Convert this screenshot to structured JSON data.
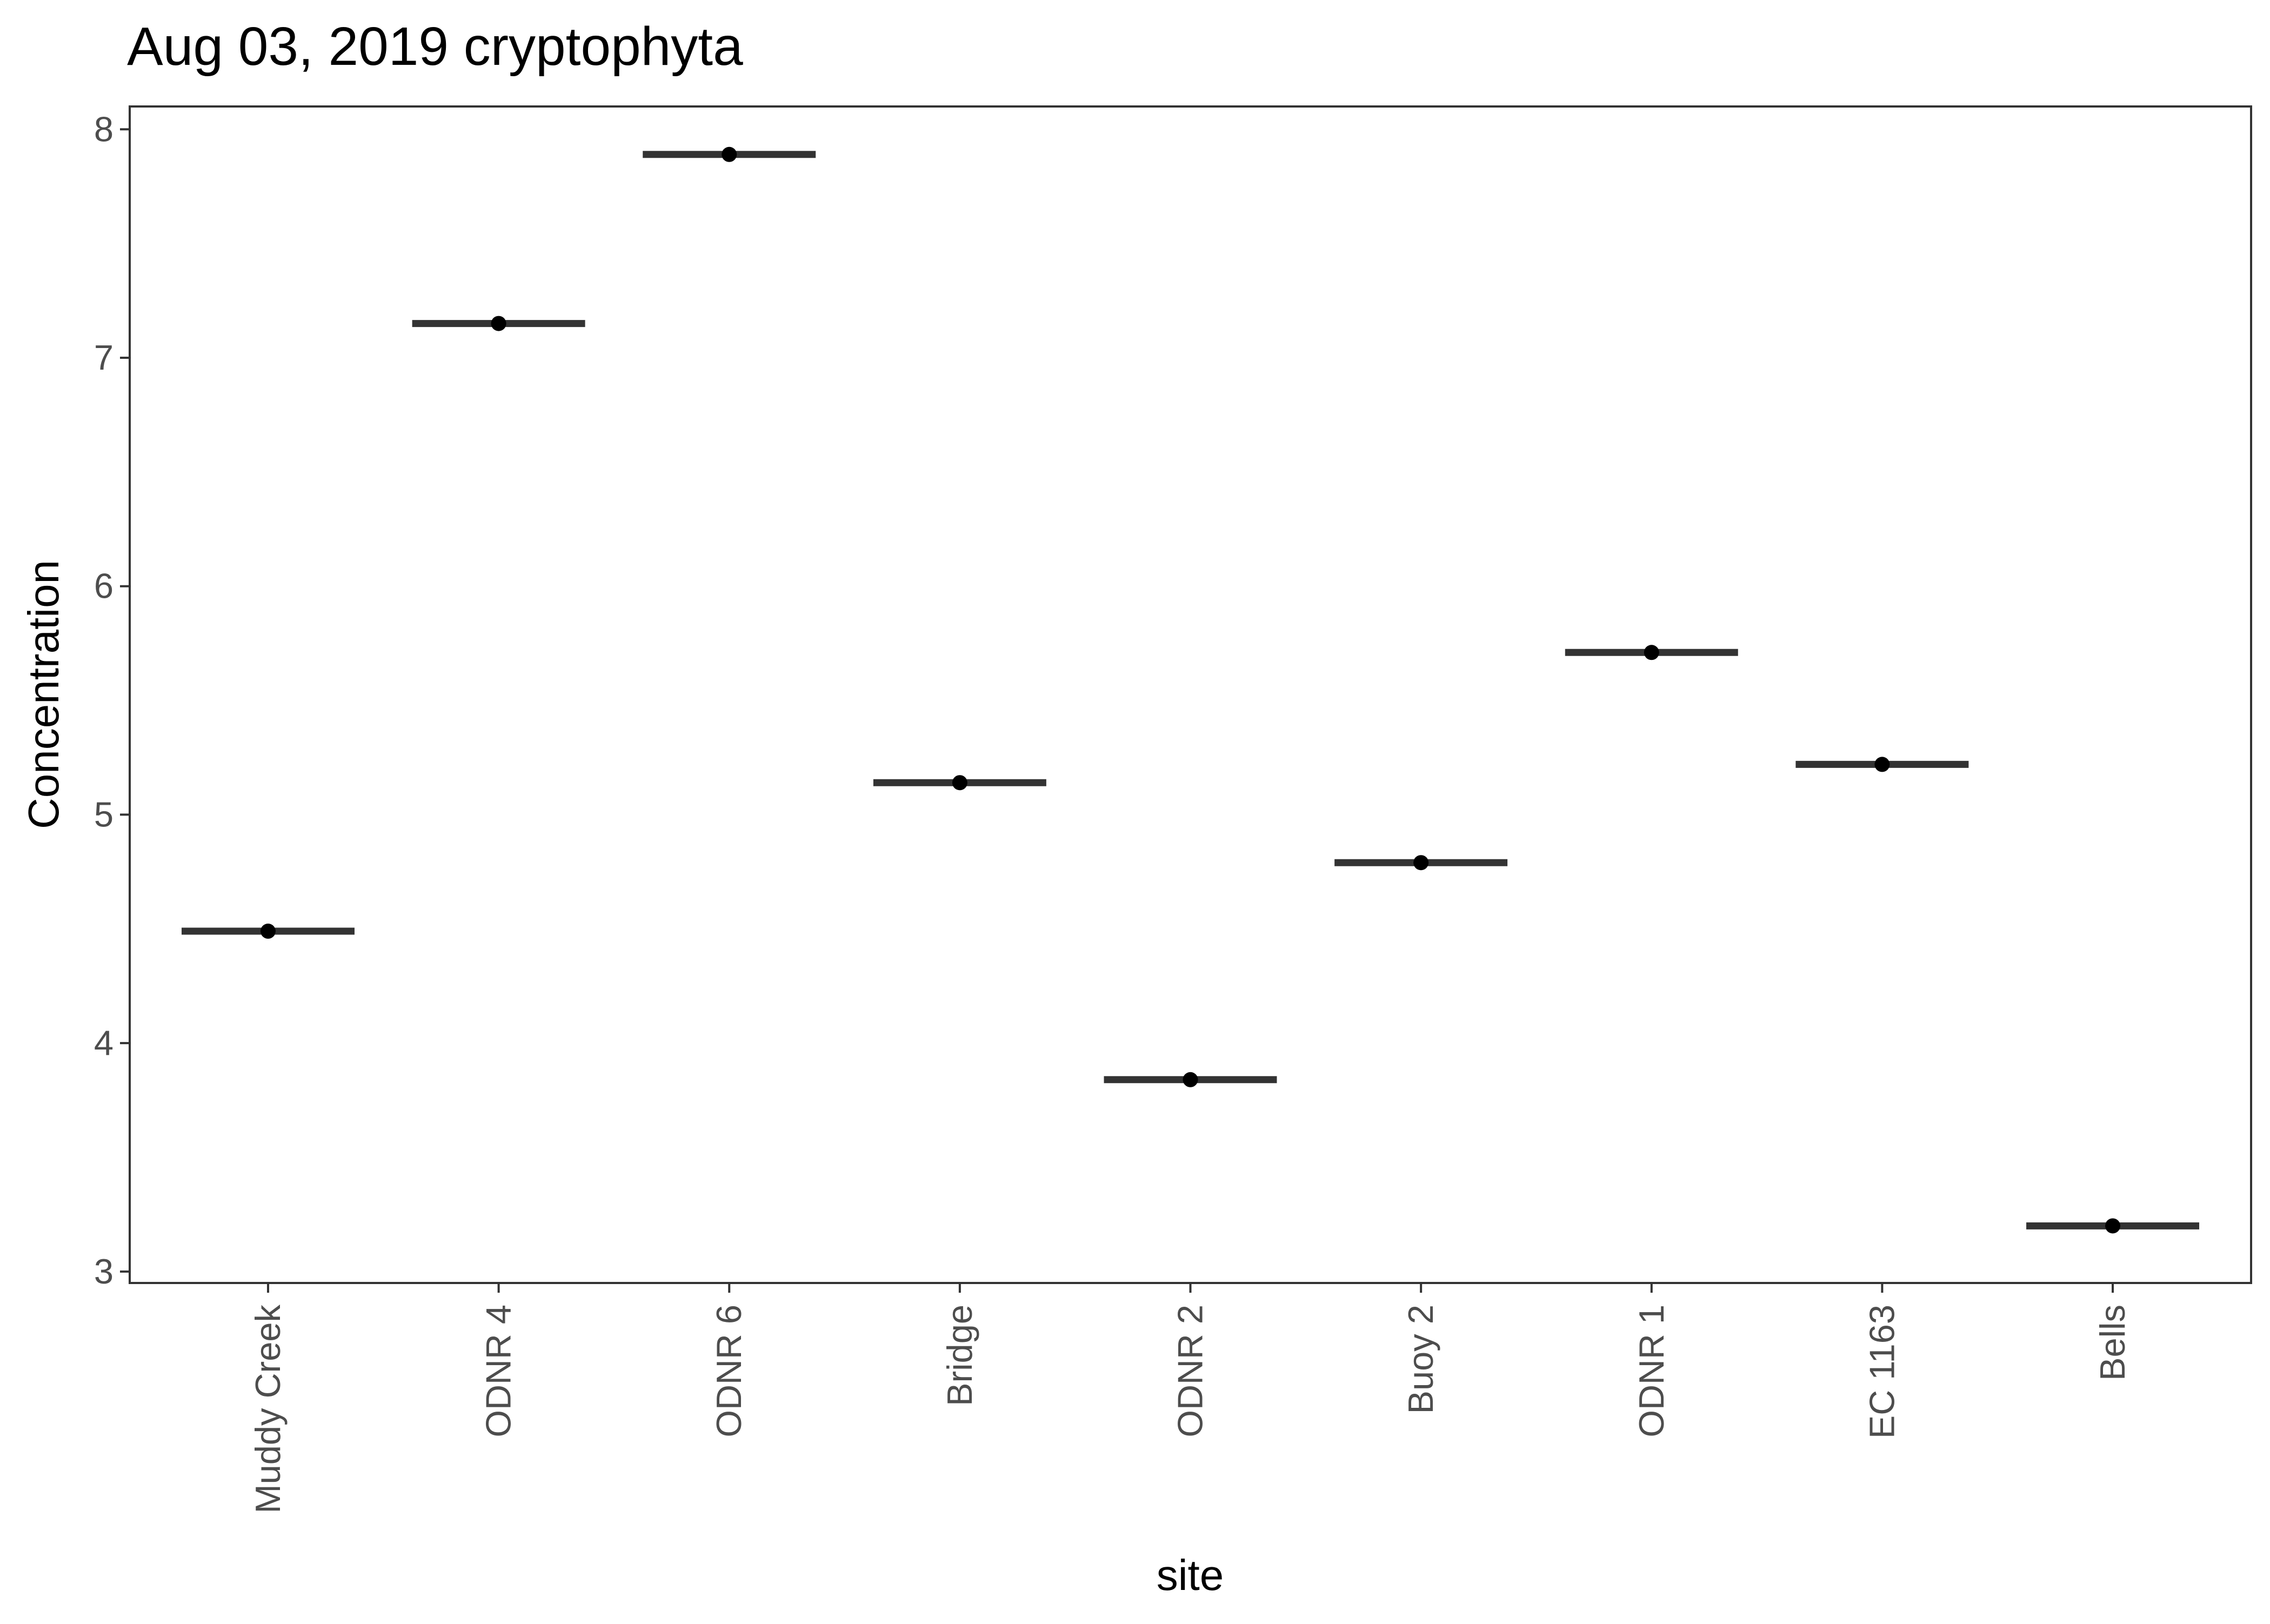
{
  "chart_data": {
    "type": "scatter",
    "title": "Aug 03, 2019 cryptophyta",
    "xlabel": "site",
    "ylabel": "Concentration",
    "ylim": [
      2.95,
      8.1
    ],
    "yticks": [
      3,
      4,
      5,
      6,
      7,
      8
    ],
    "grid": false,
    "legend": "none",
    "categories": [
      "Muddy Creek",
      "ODNR 4",
      "ODNR 6",
      "Bridge",
      "ODNR 2",
      "Buoy 2",
      "ODNR 1",
      "EC 1163",
      "Bells"
    ],
    "values": [
      4.49,
      7.15,
      7.89,
      5.14,
      3.84,
      4.79,
      5.71,
      5.22,
      3.2
    ],
    "style": {
      "median_line_color": "#333333",
      "point_color": "#000000",
      "panel_border_color": "#333333",
      "tick_label_color": "#4d4d4d"
    }
  }
}
